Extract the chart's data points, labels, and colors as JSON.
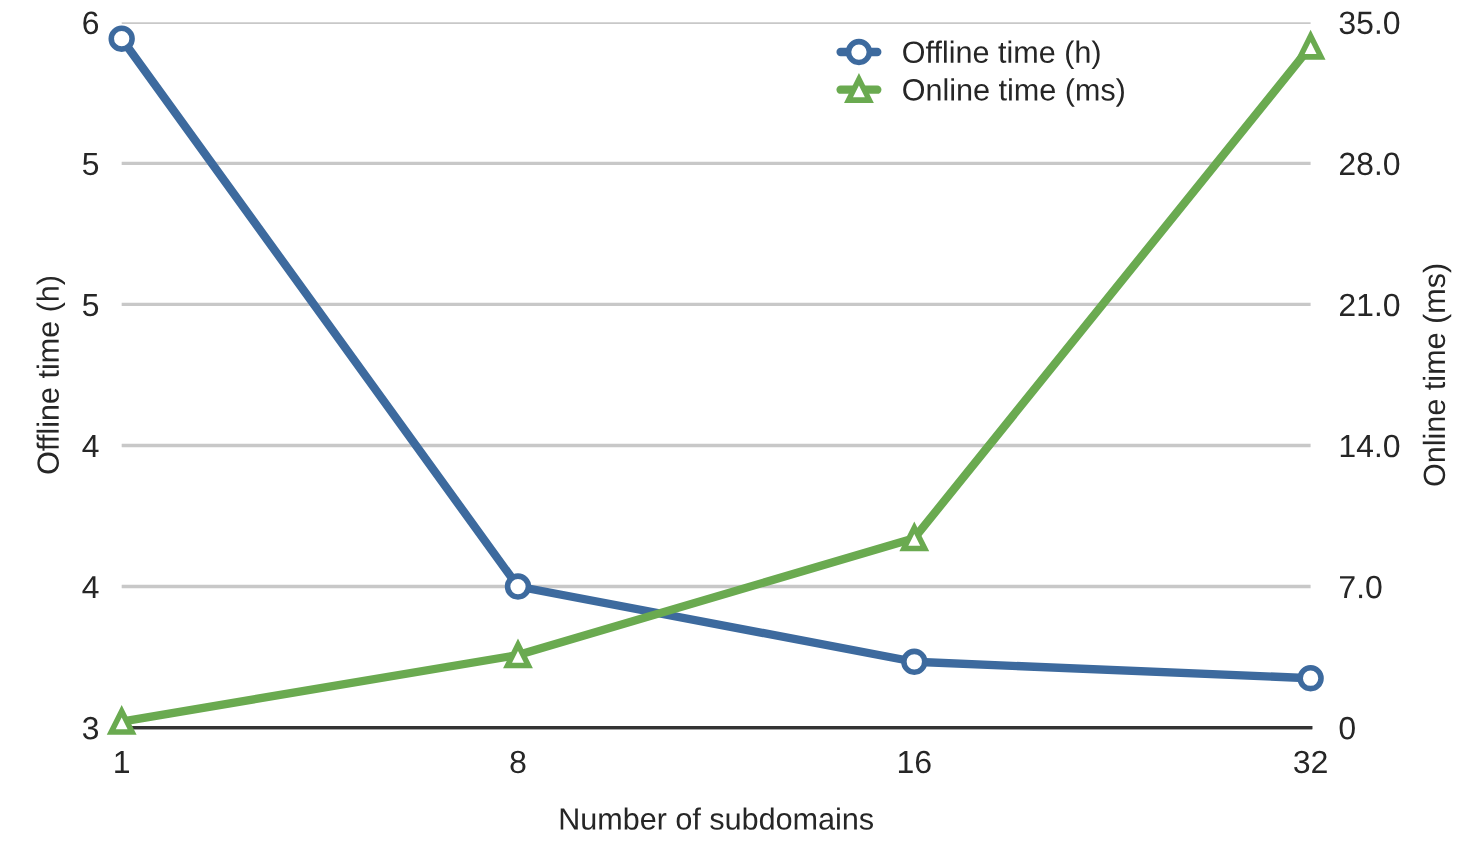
{
  "chart_data": {
    "type": "line",
    "xlabel": "Number of subdomains",
    "ylabel": "Offline time (h)",
    "y2label": "Online time (ms)",
    "categories": [
      "1",
      "8",
      "16",
      "32"
    ],
    "series": [
      {
        "name": "Offline time (h)",
        "color": "#3d6a9e",
        "marker": "circle",
        "values": [
          5.93,
          3.6,
          3.28,
          3.21
        ]
      },
      {
        "name": "Online time (ms)",
        "color": "#6aaa50",
        "marker": "triangle",
        "axis": "y2",
        "values": [
          0.3,
          3.6,
          9.4,
          33.8
        ]
      }
    ],
    "ylim": [
      3,
      6
    ],
    "yticks": [
      3,
      {
        "value": 3.6,
        "label": "4"
      },
      {
        "value": 4.2,
        "label": "4"
      },
      {
        "value": 4.8,
        "label": "5"
      },
      {
        "value": 5.4,
        "label": "5"
      },
      6
    ],
    "y2lim": [
      0,
      35
    ],
    "y2ticks": [
      0,
      {
        "value": 7,
        "label": "7.0"
      },
      {
        "value": 14,
        "label": "14.0"
      },
      {
        "value": 21,
        "label": "21.0"
      },
      {
        "value": 28,
        "label": "28.0"
      },
      {
        "value": 35,
        "label": "35.0"
      }
    ],
    "grid": "y",
    "legend": "top right",
    "line_style": "solid"
  }
}
